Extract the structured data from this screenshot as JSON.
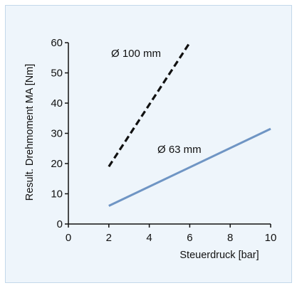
{
  "chart_data": {
    "type": "line",
    "xlabel": "Steuerdruck [bar]",
    "ylabel": "Result. Drehmoment MA [Nm]",
    "xlim": [
      0,
      10
    ],
    "ylim": [
      0,
      60
    ],
    "xticks": [
      0,
      2,
      4,
      6,
      8,
      10
    ],
    "yticks": [
      0,
      10,
      20,
      30,
      40,
      50,
      60
    ],
    "grid": false,
    "series": [
      {
        "name": "Ø 100 mm",
        "x": [
          2,
          6
        ],
        "y": [
          19,
          60
        ],
        "color": "#111111",
        "style": "dashed"
      },
      {
        "name": "Ø 63 mm",
        "x": [
          2,
          10
        ],
        "y": [
          6,
          31.5
        ],
        "color": "#6f95c4",
        "style": "solid"
      }
    ]
  },
  "colors": {
    "panel_background": "#eef5fb",
    "panel_border": "#c3d8ea",
    "axis": "#111111"
  }
}
